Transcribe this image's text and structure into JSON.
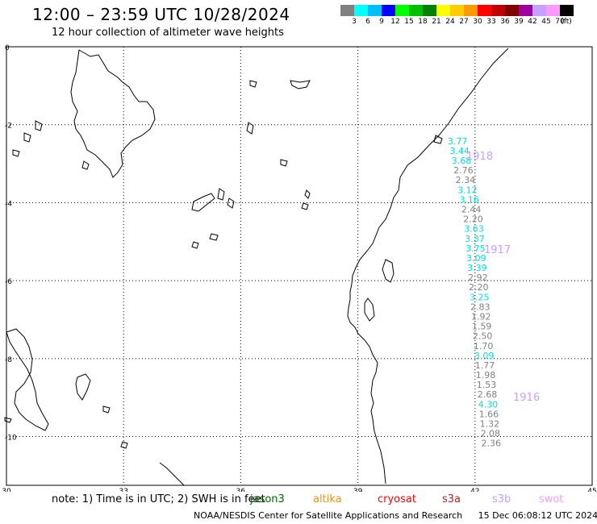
{
  "header": {
    "title": "12:00 – 23:59 UTC 10/28/2024",
    "subtitle": "12 hour collection of altimeter wave heights"
  },
  "colorbar": {
    "swatches": [
      "#808080",
      "#00ffff",
      "#00bfff",
      "#0000ff",
      "#00ff00",
      "#00c000",
      "#008000",
      "#ffff00",
      "#ffcc00",
      "#ff9900",
      "#ff0000",
      "#c00000",
      "#800000",
      "#a000a0",
      "#c8a0ff",
      "#ff99ff",
      "#000000"
    ],
    "labels": [
      "3",
      "6",
      "9",
      "12",
      "15",
      "18",
      "21",
      "24",
      "27",
      "30",
      "33",
      "36",
      "39",
      "42",
      "45",
      "70",
      "(ft)"
    ]
  },
  "map": {
    "x_ticks": [
      "30",
      "33",
      "36",
      "39",
      "42",
      "45"
    ],
    "y_ticks": [
      "0",
      "-2",
      "-4",
      "-6",
      "-8",
      "-10"
    ],
    "cycle_labels": [
      "1918",
      "1917",
      "1916"
    ],
    "wave_readings": [
      {
        "lat": -2.5,
        "lon": 41.3,
        "value": "3.77",
        "color": "#00e0e0"
      },
      {
        "lat": -2.75,
        "lon": 41.35,
        "value": "3.44",
        "color": "#00e0e0"
      },
      {
        "lat": -3.0,
        "lon": 41.4,
        "value": "3.68",
        "color": "#00e0e0"
      },
      {
        "lat": -3.25,
        "lon": 41.45,
        "value": "2.76",
        "color": "#808080"
      },
      {
        "lat": -3.5,
        "lon": 41.5,
        "value": "2.34",
        "color": "#808080"
      },
      {
        "lat": -3.75,
        "lon": 41.55,
        "value": "3.12",
        "color": "#00e0e0"
      },
      {
        "lat": -4.0,
        "lon": 41.6,
        "value": "3.16",
        "color": "#00e0e0"
      },
      {
        "lat": -4.25,
        "lon": 41.65,
        "value": "2.44",
        "color": "#808080"
      },
      {
        "lat": -4.5,
        "lon": 41.7,
        "value": "2.20",
        "color": "#808080"
      },
      {
        "lat": -4.75,
        "lon": 41.72,
        "value": "3.63",
        "color": "#00e0e0"
      },
      {
        "lat": -5.0,
        "lon": 41.74,
        "value": "3.37",
        "color": "#00e0e0"
      },
      {
        "lat": -5.25,
        "lon": 41.76,
        "value": "3.75",
        "color": "#00e0e0"
      },
      {
        "lat": -5.5,
        "lon": 41.78,
        "value": "3.09",
        "color": "#00e0e0"
      },
      {
        "lat": -5.75,
        "lon": 41.8,
        "value": "3.39",
        "color": "#00e0e0"
      },
      {
        "lat": -6.0,
        "lon": 41.82,
        "value": "2.92",
        "color": "#808080"
      },
      {
        "lat": -6.25,
        "lon": 41.84,
        "value": "2.20",
        "color": "#808080"
      },
      {
        "lat": -6.5,
        "lon": 41.86,
        "value": "3.25",
        "color": "#00e0e0"
      },
      {
        "lat": -6.75,
        "lon": 41.88,
        "value": "2.83",
        "color": "#808080"
      },
      {
        "lat": -7.0,
        "lon": 41.9,
        "value": "1.92",
        "color": "#808080"
      },
      {
        "lat": -7.25,
        "lon": 41.92,
        "value": "1.59",
        "color": "#808080"
      },
      {
        "lat": -7.5,
        "lon": 41.94,
        "value": "2.50",
        "color": "#808080"
      },
      {
        "lat": -7.75,
        "lon": 41.96,
        "value": "1.70",
        "color": "#808080"
      },
      {
        "lat": -8.0,
        "lon": 41.98,
        "value": "3.09",
        "color": "#00e0e0"
      },
      {
        "lat": -8.25,
        "lon": 42.0,
        "value": "1.77",
        "color": "#808080"
      },
      {
        "lat": -8.5,
        "lon": 42.02,
        "value": "1.98",
        "color": "#808080"
      },
      {
        "lat": -8.75,
        "lon": 42.04,
        "value": "1.53",
        "color": "#808080"
      },
      {
        "lat": -9.0,
        "lon": 42.06,
        "value": "2.68",
        "color": "#808080"
      },
      {
        "lat": -9.25,
        "lon": 42.08,
        "value": "4.30",
        "color": "#00e0e0"
      },
      {
        "lat": -9.5,
        "lon": 42.1,
        "value": "1.66",
        "color": "#808080"
      },
      {
        "lat": -9.75,
        "lon": 42.12,
        "value": "1.32",
        "color": "#808080"
      },
      {
        "lat": -10.0,
        "lon": 42.14,
        "value": "2.08",
        "color": "#808080"
      },
      {
        "lat": -10.25,
        "lon": 42.16,
        "value": "2.36",
        "color": "#808080"
      }
    ]
  },
  "notes": {
    "note": "note: 1) Time is in UTC; 2) SWH is in feet",
    "satellites": [
      {
        "name": "jason3",
        "color": "#006400"
      },
      {
        "name": "altika",
        "color": "#ff8c00"
      },
      {
        "name": "cryosat",
        "color": "#ff0000"
      },
      {
        "name": "s3a",
        "color": "#b22222"
      },
      {
        "name": "s3b",
        "color": "#c8a0ff"
      },
      {
        "name": "swot",
        "color": "#ff99ff"
      }
    ]
  },
  "footer": {
    "org": "NOAA/NESDIS Center for Satellite Applications and Research",
    "timestamp": "15 Dec 06:08:12 UTC 2024"
  }
}
